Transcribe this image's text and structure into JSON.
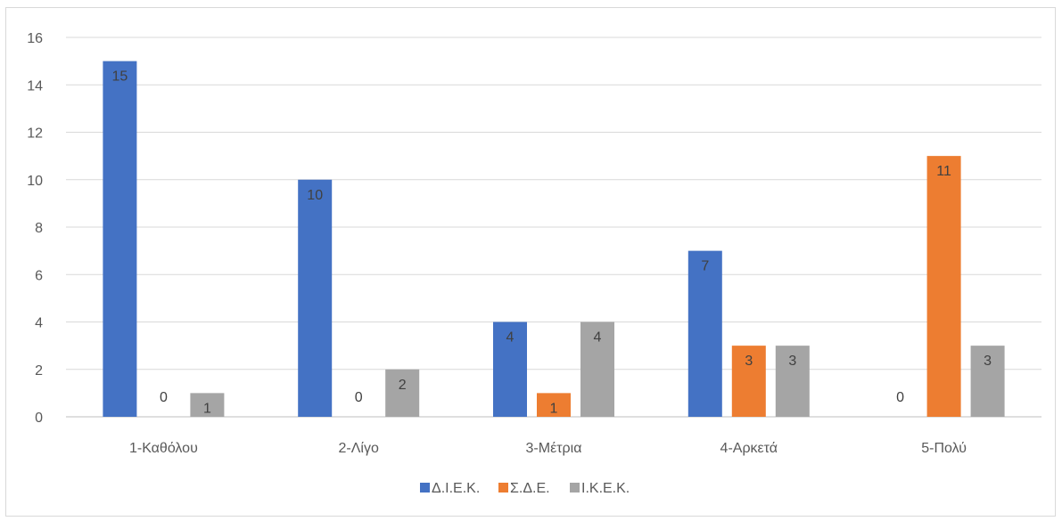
{
  "chart_data": {
    "type": "bar",
    "categories": [
      "1-Καθόλου",
      "2-Λίγο",
      "3-Μέτρια",
      "4-Αρκετά",
      "5-Πολύ"
    ],
    "series": [
      {
        "name": "Δ.Ι.Ε.Κ.",
        "color": "#4472c4",
        "values": [
          15,
          10,
          4,
          7,
          0
        ]
      },
      {
        "name": "Σ.Δ.Ε.",
        "color": "#ed7d31",
        "values": [
          0,
          0,
          1,
          3,
          11
        ]
      },
      {
        "name": "Ι.Κ.Ε.Κ.",
        "color": "#a5a5a5",
        "values": [
          1,
          2,
          4,
          3,
          3
        ]
      }
    ],
    "ylim": [
      0,
      16
    ],
    "yticks": [
      0,
      2,
      4,
      6,
      8,
      10,
      12,
      14,
      16
    ],
    "grid": true,
    "data_labels": true,
    "legend_position": "bottom"
  }
}
